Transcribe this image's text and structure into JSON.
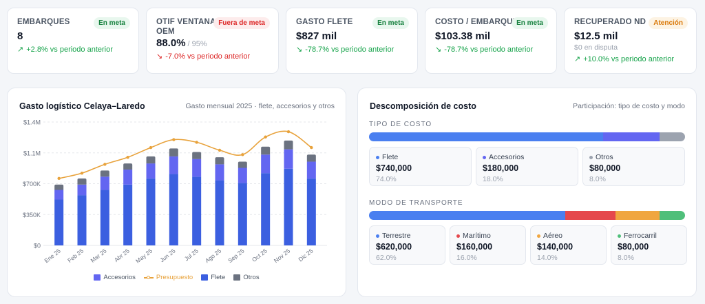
{
  "kpis": [
    {
      "label": "EMBARQUES",
      "value": "8",
      "value_sub": "",
      "note": "",
      "badge": "En meta",
      "badge_kind": "ok",
      "arrow": "↗",
      "delta": "+2.8% vs periodo anterior",
      "delta_kind": "up"
    },
    {
      "label": "OTIF VENTANA OEM",
      "value": "88.0%",
      "value_sub": "/ 95%",
      "note": "",
      "badge": "Fuera de meta",
      "badge_kind": "bad",
      "arrow": "↘",
      "delta": "-7.0% vs periodo anterior",
      "delta_kind": "down-bad"
    },
    {
      "label": "GASTO FLETE",
      "value": "$827 mil",
      "value_sub": "",
      "note": "",
      "badge": "En meta",
      "badge_kind": "ok",
      "arrow": "↘",
      "delta": "-78.7% vs periodo anterior",
      "delta_kind": "down-good"
    },
    {
      "label": "COSTO / EMBARQUE",
      "value": "$103.38 mil",
      "value_sub": "",
      "note": "",
      "badge": "En meta",
      "badge_kind": "ok",
      "arrow": "↘",
      "delta": "-78.7% vs periodo anterior",
      "delta_kind": "down-good"
    },
    {
      "label": "RECUPERADO ND",
      "value": "$12.5 mil",
      "value_sub": "",
      "note": "$0 en disputa",
      "badge": "Atención",
      "badge_kind": "warn",
      "arrow": "↗",
      "delta": "+10.0% vs periodo anterior",
      "delta_kind": "up"
    }
  ],
  "chart_panel": {
    "title": "Gasto logístico Celaya–Laredo",
    "subtitle": "Gasto mensual 2025 · flete, accesorios y otros"
  },
  "chart_data": {
    "type": "bar",
    "stacked": true,
    "categories": [
      "Ene 25",
      "Feb 25",
      "Mar 25",
      "Abr 25",
      "May 25",
      "Jun 25",
      "Jul 25",
      "Ago 25",
      "Sep 25",
      "Oct 25",
      "Nov 25",
      "Dic 25"
    ],
    "y_ticks": [
      "$0",
      "$350K",
      "$700K",
      "$1.1M",
      "$1.4M"
    ],
    "ylim": [
      0,
      1400000
    ],
    "series": [
      {
        "name": "Flete",
        "kind": "bar",
        "color": "#3b5fe0",
        "values": [
          520000,
          570000,
          630000,
          690000,
          760000,
          810000,
          780000,
          740000,
          710000,
          820000,
          870000,
          760000
        ]
      },
      {
        "name": "Accesorios",
        "kind": "bar",
        "color": "#6366f1",
        "values": [
          110000,
          120000,
          150000,
          170000,
          170000,
          200000,
          200000,
          180000,
          170000,
          210000,
          220000,
          190000
        ]
      },
      {
        "name": "Otros",
        "kind": "bar",
        "color": "#6b7280",
        "values": [
          60000,
          70000,
          70000,
          70000,
          80000,
          90000,
          80000,
          80000,
          70000,
          90000,
          100000,
          80000
        ]
      },
      {
        "name": "Presupuesto",
        "kind": "line",
        "color": "#e8a23b",
        "values": [
          760000,
          820000,
          920000,
          1000000,
          1110000,
          1200000,
          1170000,
          1080000,
          1030000,
          1230000,
          1290000,
          1110000
        ]
      }
    ],
    "legend": [
      "Accesorios",
      "Presupuesto",
      "Flete",
      "Otros"
    ],
    "legend_position": "bottom",
    "grid": true
  },
  "cost_panel": {
    "title": "Descomposición de costo",
    "subtitle": "Participación: tipo de costo y modo",
    "type_section": "TIPO DE COSTO",
    "mode_section": "MODO DE TRANSPORTE",
    "types": [
      {
        "label": "Flete",
        "value": "$740,000",
        "pct": "74.0%",
        "share": 0.74,
        "color": "#4a7ff0"
      },
      {
        "label": "Accesorios",
        "value": "$180,000",
        "pct": "18.0%",
        "share": 0.18,
        "color": "#6366f1"
      },
      {
        "label": "Otros",
        "value": "$80,000",
        "pct": "8.0%",
        "share": 0.08,
        "color": "#9ca3af"
      }
    ],
    "modes": [
      {
        "label": "Terrestre",
        "value": "$620,000",
        "pct": "62.0%",
        "share": 0.62,
        "color": "#4a7ff0"
      },
      {
        "label": "Marítimo",
        "value": "$160,000",
        "pct": "16.0%",
        "share": 0.16,
        "color": "#e5484d"
      },
      {
        "label": "Aéreo",
        "value": "$140,000",
        "pct": "14.0%",
        "share": 0.14,
        "color": "#f0a640"
      },
      {
        "label": "Ferrocarril",
        "value": "$80,000",
        "pct": "8.0%",
        "share": 0.08,
        "color": "#4fbf7a"
      }
    ]
  }
}
